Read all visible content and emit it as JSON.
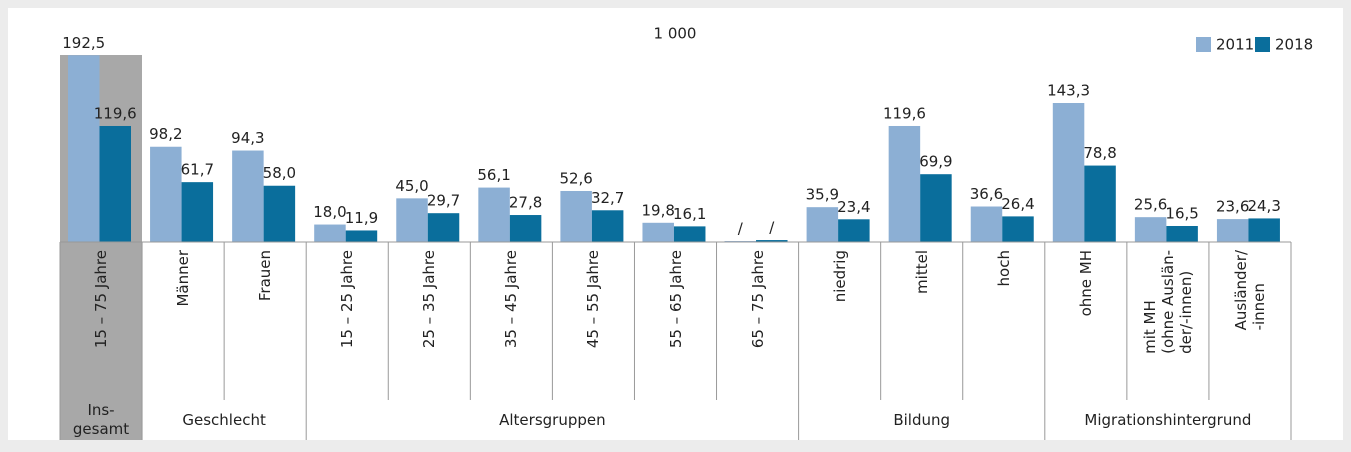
{
  "chart_data": {
    "type": "bar",
    "unit_label": "1 000",
    "categories": [
      "15 – 75 Jahre",
      "Männer",
      "Frauen",
      "15 – 25 Jahre",
      "25 – 35 Jahre",
      "35 – 45 Jahre",
      "45 – 55 Jahre",
      "55 – 65 Jahre",
      "65 – 75 Jahre",
      "niedrig",
      "mittel",
      "hoch",
      "ohne MH",
      "mit MH\n(ohne Auslän-\nder/-innen)",
      "Ausländer/\n-innen"
    ],
    "groups": [
      "Ins-\ngesamt",
      "Geschlecht",
      "Altersgruppen",
      "Bildung",
      "Migrationshintergrund"
    ],
    "series": [
      {
        "name": "2011",
        "color": "#8cafd4",
        "values": [
          192.5,
          98.2,
          94.3,
          18.0,
          45.0,
          56.1,
          52.6,
          19.8,
          1,
          35.9,
          119.6,
          36.6,
          143.3,
          25.6,
          23.6
        ],
        "value_labels": [
          "192,5",
          "98,2",
          "94,3",
          "18,0",
          "45,0",
          "56,1",
          "52,6",
          "19,8",
          "/",
          "35,9",
          "119,6",
          "36,6",
          "143,3",
          "25,6",
          "23,6"
        ]
      },
      {
        "name": "2018",
        "color": "#0a6e9c",
        "values": [
          119.6,
          61.7,
          58.0,
          11.9,
          29.7,
          27.8,
          32.7,
          16.1,
          2,
          23.4,
          69.9,
          26.4,
          78.8,
          16.5,
          24.3
        ],
        "value_labels": [
          "119,6",
          "61,7",
          "58,0",
          "11,9",
          "29,7",
          "27,8",
          "32,7",
          "16,1",
          "/",
          "23,4",
          "69,9",
          "26,4",
          "78,8",
          "16,5",
          "24,3"
        ]
      }
    ],
    "ylim": [
      0,
      200
    ],
    "legend": "top-right"
  }
}
